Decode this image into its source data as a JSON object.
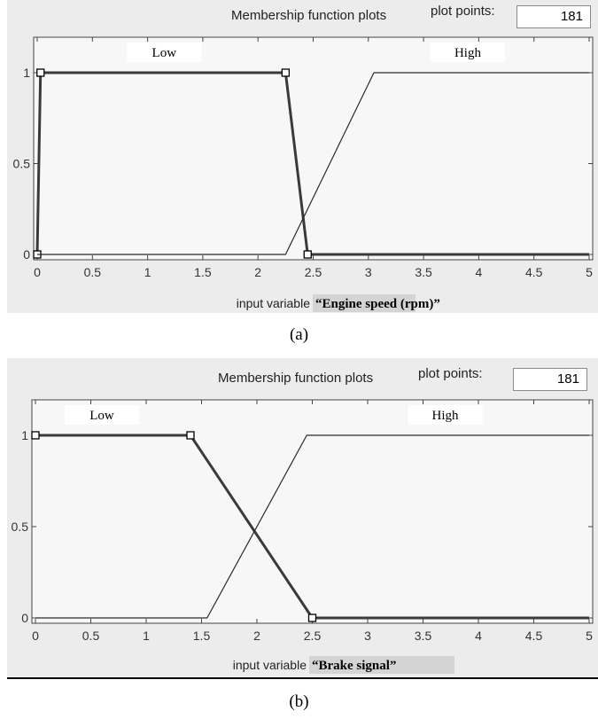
{
  "chart_data": [
    {
      "type": "line",
      "title": "Membership function plots",
      "plot_points_label": "plot points:",
      "plot_points_value": "181",
      "xlabel_prefix": "input variable",
      "xlabel_name": "“Engine speed (rpm)”",
      "xlim": [
        0,
        5
      ],
      "ylim": [
        0,
        1
      ],
      "x_ticks": [
        "0",
        "0.5",
        "1",
        "1.5",
        "2",
        "2.5",
        "3",
        "3.5",
        "4",
        "4.5",
        "5"
      ],
      "y_ticks": [
        "0",
        "0.5",
        "1"
      ],
      "grid": false,
      "series": [
        {
          "name": "Low",
          "selected": true,
          "x": [
            0,
            0.03,
            2.25,
            2.45,
            5
          ],
          "y": [
            0,
            1,
            1,
            0,
            0
          ],
          "label_x": 1.15
        },
        {
          "name": "High",
          "selected": false,
          "x": [
            0,
            2.25,
            3.05,
            5
          ],
          "y": [
            0,
            0,
            1,
            1
          ],
          "label_x": 3.9
        }
      ],
      "caption": "(a)"
    },
    {
      "type": "line",
      "title": "Membership function plots",
      "plot_points_label": "plot points:",
      "plot_points_value": "181",
      "xlabel_prefix": "input variable",
      "xlabel_name": "“Brake signal”",
      "xlim": [
        0,
        5
      ],
      "ylim": [
        0,
        1
      ],
      "x_ticks": [
        "0",
        "0.5",
        "1",
        "1.5",
        "2",
        "2.5",
        "3",
        "3.5",
        "4",
        "4.5",
        "5"
      ],
      "y_ticks": [
        "0",
        "0.5",
        "1"
      ],
      "grid": false,
      "series": [
        {
          "name": "Low",
          "selected": true,
          "x": [
            0,
            1.4,
            2.5,
            5
          ],
          "y": [
            1,
            1,
            0,
            0
          ],
          "label_x": 0.6
        },
        {
          "name": "High",
          "selected": false,
          "x": [
            0,
            1.55,
            2.45,
            5
          ],
          "y": [
            0,
            0,
            1,
            1
          ],
          "label_x": 3.7
        }
      ],
      "caption": "(b)"
    }
  ]
}
